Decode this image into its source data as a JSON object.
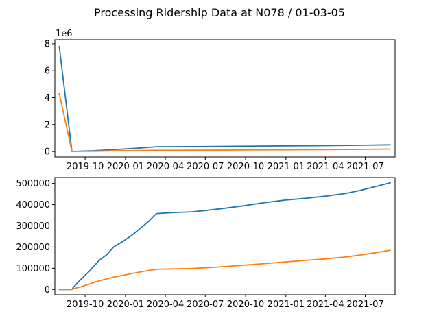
{
  "figure": {
    "title": "Processing Ridership Data at N078 / 01-03-05"
  },
  "colors": {
    "series_1": "#1f77b4",
    "series_2": "#ff7f0e"
  },
  "chart_data": [
    {
      "type": "line",
      "panel": "top",
      "x_type": "date",
      "x_ticks": [
        "2019-10",
        "2020-01",
        "2020-04",
        "2020-07",
        "2020-10",
        "2021-01",
        "2021-04",
        "2021-07"
      ],
      "y_ticks": [
        "0",
        "2",
        "4",
        "6",
        "8"
      ],
      "y_offset_label": "1e6",
      "ylim": [
        -400000,
        8300000
      ],
      "xlim": [
        "2019-07-24",
        "2021-09-07"
      ],
      "series": [
        {
          "color": "#1f77b4",
          "x": [
            "2019-08-03",
            "2019-09-01",
            "2019-10-20",
            "2019-12-01",
            "2020-01-15",
            "2020-03-12",
            "2020-07-01",
            "2020-10-01",
            "2021-01-01",
            "2021-04-01",
            "2021-07-01",
            "2021-08-27"
          ],
          "values": [
            7800000,
            5000,
            60000,
            140000,
            220000,
            358000,
            375000,
            400000,
            422000,
            440000,
            470000,
            503000
          ]
        },
        {
          "color": "#ff7f0e",
          "x": [
            "2019-08-03",
            "2019-09-01",
            "2019-10-20",
            "2019-12-01",
            "2020-01-15",
            "2020-03-12",
            "2020-07-01",
            "2020-10-01",
            "2021-01-01",
            "2021-04-01",
            "2021-07-01",
            "2021-08-27"
          ],
          "values": [
            4300000,
            5000,
            20000,
            50000,
            68000,
            93000,
            100000,
            115000,
            130000,
            145000,
            165000,
            185000
          ]
        }
      ]
    },
    {
      "type": "line",
      "panel": "bottom",
      "x_type": "date",
      "x_ticks": [
        "2019-10",
        "2020-01",
        "2020-04",
        "2020-07",
        "2020-10",
        "2021-01",
        "2021-04",
        "2021-07"
      ],
      "y_ticks": [
        "0",
        "100000",
        "200000",
        "300000",
        "400000",
        "500000"
      ],
      "ylim": [
        -25000,
        528000
      ],
      "xlim": [
        "2019-07-24",
        "2021-09-07"
      ],
      "series": [
        {
          "color": "#1f77b4",
          "x": [
            "2019-08-03",
            "2019-09-01",
            "2019-09-04",
            "2019-09-20",
            "2019-10-10",
            "2019-11-01",
            "2019-11-20",
            "2019-12-05",
            "2019-12-25",
            "2020-01-15",
            "2020-02-05",
            "2020-02-25",
            "2020-03-05",
            "2020-03-12",
            "2020-04-15",
            "2020-06-01",
            "2020-07-01",
            "2020-08-15",
            "2020-10-01",
            "2020-11-15",
            "2021-01-01",
            "2021-02-15",
            "2021-04-01",
            "2021-05-15",
            "2021-06-15",
            "2021-07-15",
            "2021-08-27"
          ],
          "values": [
            0,
            0,
            10000,
            45000,
            85000,
            135000,
            165000,
            200000,
            225000,
            255000,
            290000,
            325000,
            345000,
            358000,
            362000,
            366000,
            372000,
            383000,
            396000,
            410000,
            422000,
            430000,
            440000,
            452000,
            465000,
            480000,
            503000
          ]
        },
        {
          "color": "#ff7f0e",
          "x": [
            "2019-08-03",
            "2019-09-01",
            "2019-09-04",
            "2019-09-20",
            "2019-10-10",
            "2019-11-01",
            "2019-11-20",
            "2019-12-05",
            "2019-12-25",
            "2020-01-15",
            "2020-02-05",
            "2020-02-25",
            "2020-03-12",
            "2020-04-15",
            "2020-06-01",
            "2020-07-01",
            "2020-08-15",
            "2020-10-01",
            "2020-11-15",
            "2021-01-01",
            "2021-02-15",
            "2021-04-01",
            "2021-05-15",
            "2021-06-15",
            "2021-07-15",
            "2021-08-27"
          ],
          "values": [
            0,
            0,
            3000,
            12000,
            25000,
            40000,
            50000,
            58000,
            66000,
            75000,
            83000,
            90000,
            95000,
            97000,
            99000,
            102000,
            108000,
            115000,
            122000,
            130000,
            137000,
            144000,
            153000,
            161000,
            170000,
            185000
          ]
        }
      ]
    }
  ]
}
